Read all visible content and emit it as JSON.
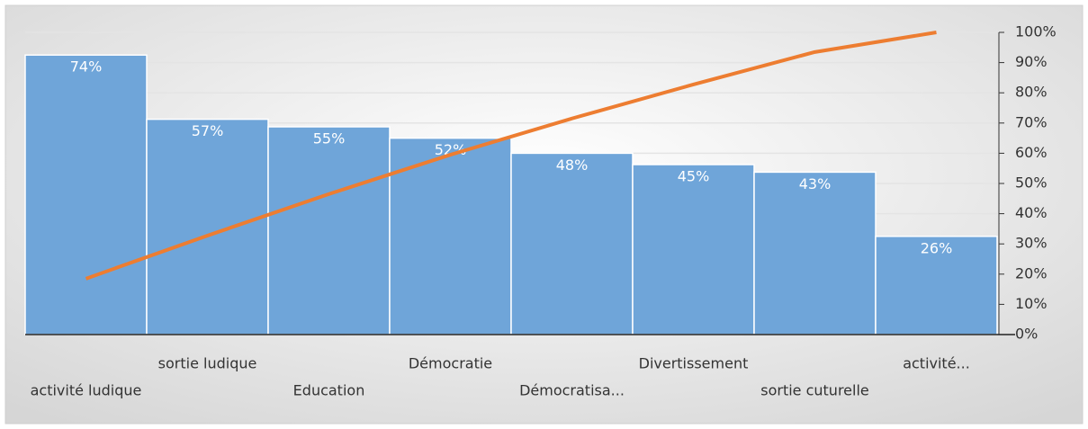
{
  "chart_data": {
    "type": "pareto",
    "categories": [
      "activité ludique",
      "sortie ludique",
      "Education",
      "Démocratie",
      "Démocratisa...",
      "Divertissement",
      "sortie cuturelle",
      "activité..."
    ],
    "series": [
      {
        "type": "bar",
        "color": "#6fa5d9",
        "values": [
          74,
          57,
          55,
          52,
          48,
          45,
          43,
          26
        ],
        "value_labels": [
          "74%",
          "57%",
          "55%",
          "52%",
          "48%",
          "45%",
          "43%",
          "26%"
        ]
      },
      {
        "type": "line",
        "axis": "y2",
        "color": "#ed7d31",
        "values": [
          18.5,
          32.75,
          46.5,
          59.5,
          71.5,
          82.75,
          93.5,
          100
        ]
      }
    ],
    "ylim": [
      0,
      80
    ],
    "y2lim": [
      0,
      100
    ],
    "y2ticks": [
      {
        "value": 0,
        "label": "0%"
      },
      {
        "value": 10,
        "label": "10%"
      },
      {
        "value": 20,
        "label": "20%"
      },
      {
        "value": 30,
        "label": "30%"
      },
      {
        "value": 40,
        "label": "40%"
      },
      {
        "value": 50,
        "label": "50%"
      },
      {
        "value": 60,
        "label": "60%"
      },
      {
        "value": 70,
        "label": "70%"
      },
      {
        "value": 80,
        "label": "80%"
      },
      {
        "value": 90,
        "label": "90%"
      },
      {
        "value": 100,
        "label": "100%"
      }
    ],
    "grid": true
  }
}
